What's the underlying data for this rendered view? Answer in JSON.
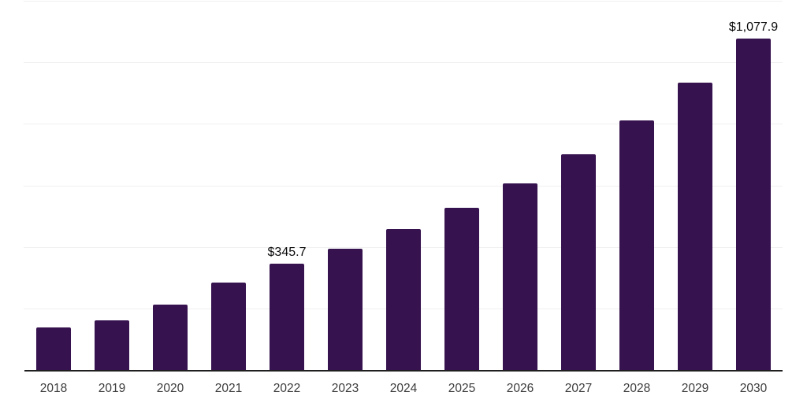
{
  "chart_data": {
    "type": "bar",
    "categories": [
      "2018",
      "2019",
      "2020",
      "2021",
      "2022",
      "2023",
      "2024",
      "2025",
      "2026",
      "2027",
      "2028",
      "2029",
      "2030"
    ],
    "values": [
      138,
      162,
      212,
      284,
      345.7,
      395,
      457,
      526,
      606,
      700,
      810,
      933,
      1077.9
    ],
    "data_labels": {
      "2022": "$345.7",
      "2030": "$1,077.9"
    },
    "title": "",
    "xlabel": "",
    "ylabel": "",
    "ylim": [
      0,
      1200
    ],
    "gridline_step": 200,
    "grid": true,
    "legend": false,
    "y_tick_labels_visible": false
  },
  "colors": {
    "bar": "#36124E",
    "gridline": "#f0f0f0",
    "axis_line": "#1f1f1f",
    "tick_label": "#3d3d3d",
    "data_label": "#0a0a0a",
    "background": "#ffffff"
  }
}
